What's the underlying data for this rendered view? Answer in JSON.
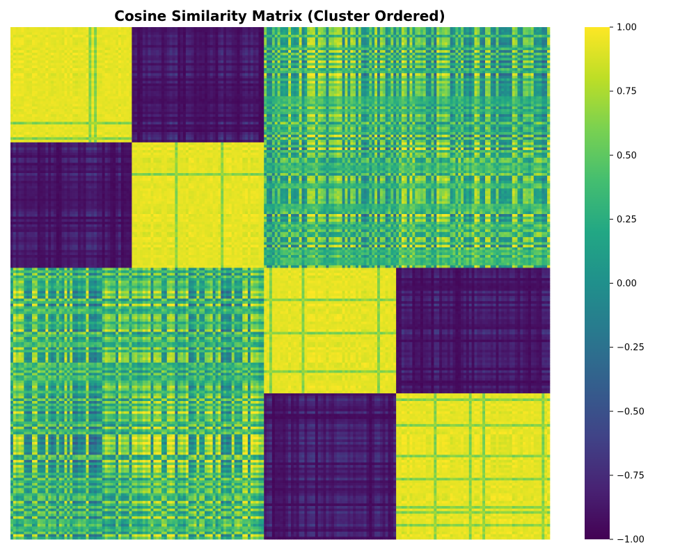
{
  "chart_data": {
    "type": "heatmap",
    "title": "Cosine Similarity Matrix (Cluster Ordered)",
    "xlabel": "",
    "ylabel": "",
    "grid": false,
    "colormap": "viridis",
    "value_range": [
      -1.0,
      1.0
    ],
    "n_items": 200,
    "clusters": [
      {
        "cluster": 1,
        "size": 45
      },
      {
        "cluster": 2,
        "size": 49
      },
      {
        "cluster": 3,
        "size": 49
      },
      {
        "cluster": 4,
        "size": 57
      }
    ],
    "block_mean_similarity": [
      [
        0.95,
        -0.95,
        0.35,
        0.3
      ],
      [
        -0.95,
        0.95,
        0.3,
        0.4
      ],
      [
        0.35,
        0.3,
        0.95,
        -0.95
      ],
      [
        0.3,
        0.4,
        -0.95,
        0.95
      ]
    ],
    "colorbar": {
      "ticks": [
        1.0,
        0.75,
        0.5,
        0.25,
        0.0,
        -0.25,
        -0.5,
        -0.75,
        -1.0
      ],
      "tick_labels": [
        "1.00",
        "0.75",
        "0.50",
        "0.25",
        "0.00",
        "−0.25",
        "−0.50",
        "−0.75",
        "−1.00"
      ]
    }
  }
}
